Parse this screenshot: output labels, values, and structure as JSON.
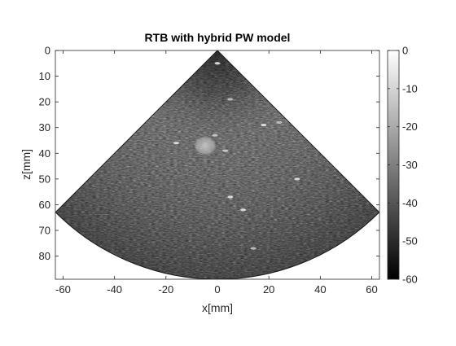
{
  "figure": {
    "title": "RTB with hybrid PW model",
    "xlabel": "x[mm]",
    "ylabel": "z[mm]",
    "xlim": [
      -63,
      63
    ],
    "ylim": [
      0,
      89
    ],
    "y_direction": "reversed",
    "xticks": [
      "-60",
      "-40",
      "-20",
      "0",
      "20",
      "40",
      "60"
    ],
    "yticks": [
      "0",
      "10",
      "20",
      "30",
      "40",
      "50",
      "60",
      "70",
      "80"
    ],
    "colorbar": {
      "range": [
        -60,
        0
      ],
      "ticks": [
        "0",
        "-10",
        "-20",
        "-30",
        "-40",
        "-50",
        "-60"
      ],
      "colormap": "gray"
    },
    "colors": {
      "background": "#ffffff",
      "axes_outline": "#262626"
    }
  }
}
